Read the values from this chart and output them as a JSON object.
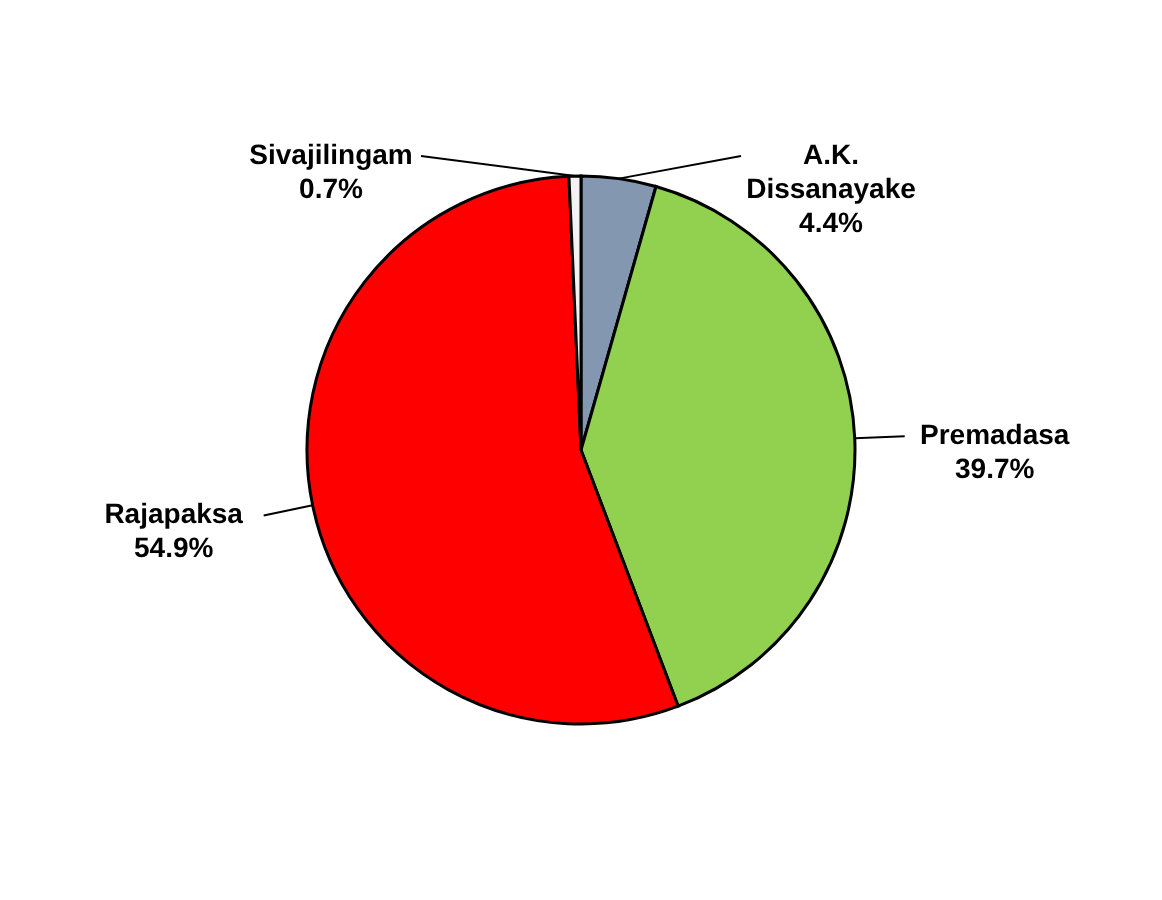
{
  "chart_data": {
    "type": "pie",
    "categories": [
      "A.K. Dissanayake",
      "Premadasa",
      "Rajapaksa",
      "Sivajilingam"
    ],
    "values": [
      4.4,
      39.7,
      54.9,
      0.7
    ],
    "colors": [
      "#8497b0",
      "#92d050",
      "#ff0000",
      "#f2f2f2"
    ],
    "value_labels": [
      "4.4%",
      "39.7%",
      "54.9%",
      "0.7%"
    ]
  }
}
